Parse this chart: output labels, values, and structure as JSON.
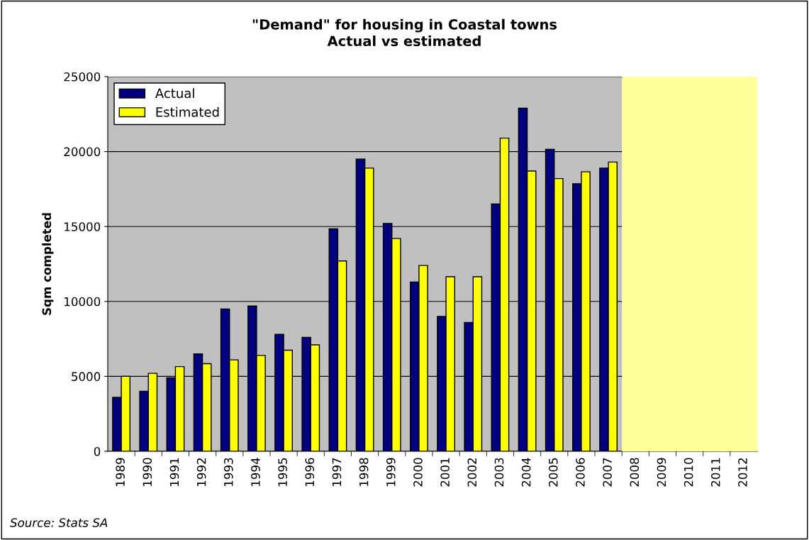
{
  "chart_data": {
    "type": "bar",
    "title": "\"Demand\" for housing in Coastal towns\nActual vs estimated",
    "ylabel": "Sqm completed",
    "categories": [
      "1989",
      "1990",
      "1991",
      "1992",
      "1993",
      "1994",
      "1995",
      "1996",
      "1997",
      "1998",
      "1999",
      "2000",
      "2001",
      "2002",
      "2003",
      "2004",
      "2005",
      "2006",
      "2007",
      "2008",
      "2009",
      "2010",
      "2011",
      "2012"
    ],
    "series": [
      {
        "name": "Actual",
        "color": "#000080",
        "values": [
          3600,
          4000,
          4900,
          6500,
          9500,
          9700,
          7800,
          7600,
          14850,
          19500,
          15200,
          11300,
          9000,
          8600,
          16500,
          22900,
          20150,
          17850,
          18900,
          null,
          null,
          null,
          null,
          null
        ]
      },
      {
        "name": "Estimated",
        "color": "#ffff00",
        "values": [
          5000,
          5200,
          5650,
          5850,
          6100,
          6400,
          6750,
          7100,
          12700,
          18900,
          14200,
          12400,
          11650,
          11650,
          20900,
          18700,
          18200,
          18650,
          19300,
          null,
          null,
          null,
          null,
          null
        ]
      }
    ],
    "ylim": [
      0,
      25000
    ],
    "yticks": [
      0,
      5000,
      10000,
      15000,
      20000,
      25000
    ],
    "grid": "y",
    "legend": "top left",
    "bands": [
      {
        "axis": "x",
        "from": "2008",
        "to": "2012",
        "color": "#ffff99"
      }
    ],
    "annotations": [
      "Source: Stats SA"
    ]
  }
}
